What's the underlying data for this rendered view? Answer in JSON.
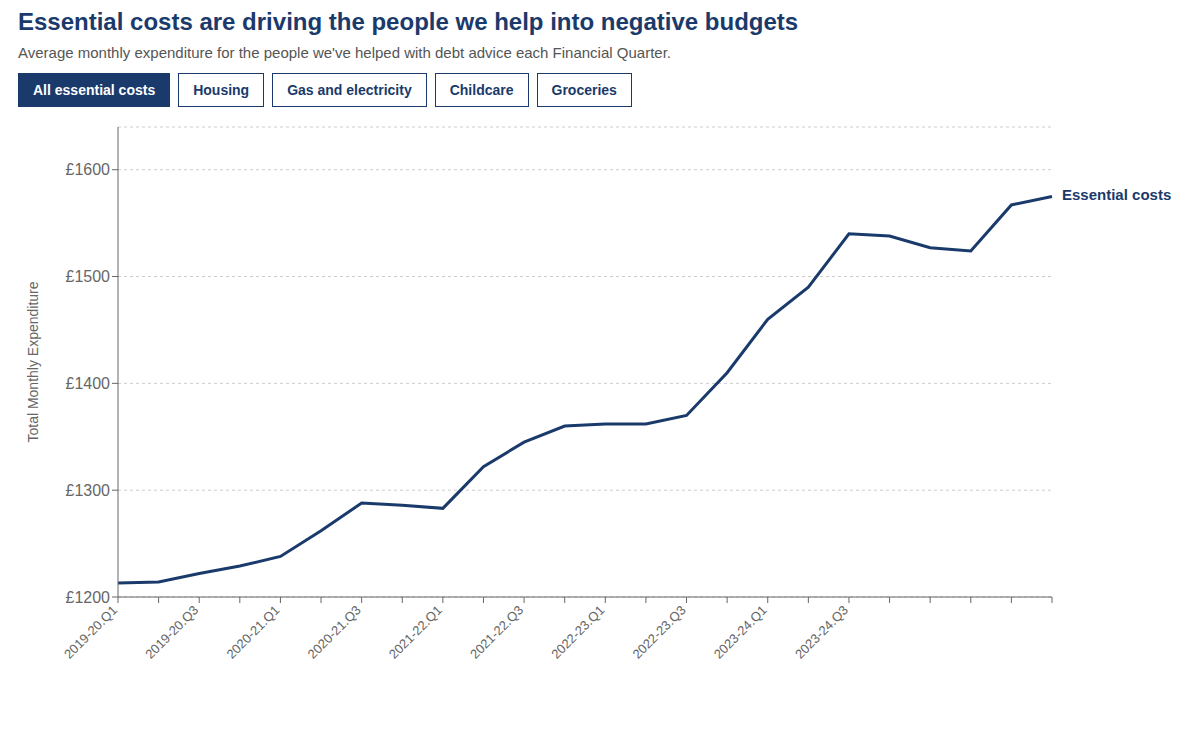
{
  "chart_data": {
    "type": "line",
    "title": "Essential costs are driving the people we help into negative budgets",
    "subtitle": "Average monthly expenditure for the people we've helped with debt advice each Financial Quarter.",
    "tabs": [
      "All essential costs",
      "Housing",
      "Gas and electricity",
      "Childcare",
      "Groceries"
    ],
    "ylabel": "Total Monthly Expenditure",
    "categories": [
      "2019-20.Q1",
      null,
      "2019-20.Q3",
      null,
      "2020-21.Q1",
      null,
      "2020-21.Q3",
      null,
      "2021-22.Q1",
      null,
      "2021-22.Q3",
      null,
      "2022-23.Q1",
      null,
      "2022-23.Q3",
      null,
      "2023-24.Q1",
      null,
      "2023-24.Q3",
      null,
      null,
      null,
      null,
      null
    ],
    "series": [
      {
        "name": "Essential costs",
        "color": "#1a3a6b",
        "values": [
          1213,
          1214,
          1222,
          1229,
          1238,
          1262,
          1288,
          1286,
          1283,
          1322,
          1345,
          1360,
          1362,
          1362,
          1370,
          1410,
          1460,
          1490,
          1540,
          1538,
          1527,
          1524,
          1567,
          1575
        ]
      }
    ],
    "ylim": [
      1200,
      1640
    ],
    "yticks": [
      {
        "value": 1200,
        "label": "£1200"
      },
      {
        "value": 1300,
        "label": "£1300"
      },
      {
        "value": 1400,
        "label": "£1400"
      },
      {
        "value": 1500,
        "label": "£1500"
      },
      {
        "value": 1600,
        "label": "£1600"
      }
    ],
    "grid": true
  }
}
